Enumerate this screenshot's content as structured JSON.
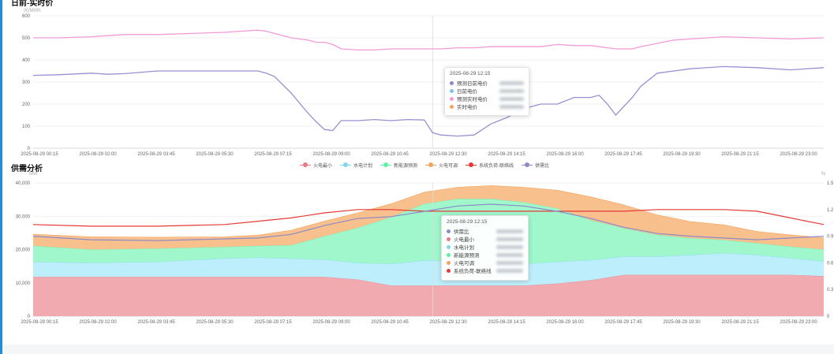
{
  "colors": {
    "accent": "#1e8fd6",
    "s1": "#9a8fd0",
    "s2": "#f29ad8",
    "fire_min": "#e57b86",
    "hydro": "#7fd6ee",
    "renewable": "#5ff0a8",
    "fire_adj": "#f5a35c",
    "load": "#e53935",
    "ratio": "#8e89c9"
  },
  "chart_top": {
    "title": "日前-实时价",
    "unit": "元/MWh",
    "tooltip": {
      "time": "2025-08-29 12:15",
      "rows": [
        {
          "name": "预测日前电价",
          "color": "#8e89c9"
        },
        {
          "name": "日前电价",
          "color": "#7fc0ee"
        },
        {
          "name": "预测实时电价",
          "color": "#f29ad8"
        },
        {
          "name": "实时电价",
          "color": "#f5a35c"
        }
      ]
    }
  },
  "chart_bottom": {
    "title": "供需分析",
    "unit_left": "MW",
    "unit_right": "%",
    "legend": [
      {
        "name": "火电最小",
        "color": "#e57b86"
      },
      {
        "name": "水电计划",
        "color": "#7fd6ee"
      },
      {
        "name": "新能源预测",
        "color": "#5ff0a8"
      },
      {
        "name": "火电可调",
        "color": "#f5a35c"
      },
      {
        "name": "系统负荷-联络线",
        "color": "#e53935"
      },
      {
        "name": "供需比",
        "color": "#8e89c9"
      }
    ],
    "tooltip": {
      "time": "2025-08-29 12:15",
      "rows": [
        {
          "name": "供需比",
          "color": "#8e89c9"
        },
        {
          "name": "火电最小",
          "color": "#e57b86"
        },
        {
          "name": "水电计划",
          "color": "#7fd6ee"
        },
        {
          "name": "新能源预测",
          "color": "#5ff0a8"
        },
        {
          "name": "火电可调",
          "color": "#f5a35c"
        },
        {
          "name": "系统负荷-联络线",
          "color": "#e53935"
        }
      ]
    }
  },
  "chart_data": [
    {
      "type": "line",
      "title": "",
      "ylabel": "元/MWh",
      "ylim": [
        0,
        600
      ],
      "yticks": [
        "0",
        "100",
        "200",
        "300",
        "400",
        "500",
        "600"
      ],
      "xticks": [
        "2025-08-29 00:15",
        "2025-08-29 02:00",
        "2025-08-29 03:45",
        "2025-08-29 05:30",
        "2025-08-29 07:15",
        "2025-08-29 09:00",
        "2025-08-29 10:45",
        "2025-08-29 12:30",
        "2025-08-29 14:15",
        "2025-08-29 16:00",
        "2025-08-29 17:45",
        "2025-08-29 19:30",
        "2025-08-29 21:15",
        "2025-08-29 23:00"
      ],
      "x_hours": [
        0.25,
        1,
        2,
        2.5,
        3,
        4,
        5,
        6,
        7,
        7.25,
        7.5,
        8,
        8.5,
        8.75,
        9,
        9.25,
        9.5,
        10,
        10.5,
        11,
        11.5,
        12,
        12.25,
        12.5,
        13,
        13.5,
        14,
        14.25,
        14.5,
        15,
        15.5,
        16,
        16.5,
        17,
        17.25,
        17.5,
        17.75,
        18,
        18.25,
        18.5,
        19,
        19.5,
        20,
        21,
        22,
        23,
        24
      ],
      "grid": true,
      "series": [
        {
          "values": [
            330,
            333,
            340,
            335,
            338,
            350,
            350,
            350,
            350,
            340,
            325,
            250,
            160,
            120,
            85,
            80,
            125,
            125,
            130,
            125,
            130,
            128,
            70,
            60,
            55,
            60,
            110,
            125,
            140,
            180,
            200,
            200,
            230,
            230,
            240,
            200,
            150,
            190,
            230,
            280,
            340,
            350,
            360,
            370,
            365,
            355,
            365
          ]
        },
        {
          "values": [
            500,
            500,
            505,
            510,
            515,
            515,
            520,
            525,
            535,
            530,
            520,
            500,
            490,
            480,
            480,
            470,
            450,
            445,
            445,
            450,
            450,
            450,
            450,
            450,
            455,
            455,
            460,
            460,
            460,
            460,
            460,
            470,
            465,
            465,
            460,
            455,
            450,
            450,
            450,
            460,
            475,
            490,
            495,
            505,
            500,
            495,
            500
          ]
        }
      ]
    },
    {
      "type": "area",
      "title": "",
      "ylabel": "MW",
      "ylim": [
        0,
        40000
      ],
      "yticks": [
        "0",
        "10,000",
        "20,000",
        "30,000",
        "40,000"
      ],
      "y2ticks": [
        "0",
        "0.3",
        "0.6",
        "0.9",
        "1.2",
        "1.5"
      ],
      "y2lim": [
        0,
        1.5
      ],
      "xticks": [
        "2025-08-29 00:15",
        "2025-08-29 02:00",
        "2025-08-29 03:45",
        "2025-08-29 05:30",
        "2025-08-29 07:15",
        "2025-08-29 09:00",
        "2025-08-29 10:45",
        "2025-08-29 12:30",
        "2025-08-29 14:15",
        "2025-08-29 16:00",
        "2025-08-29 17:45",
        "2025-08-29 19:30",
        "2025-08-29 21:15",
        "2025-08-29 23:00"
      ],
      "x_hours": [
        0.25,
        2,
        4,
        6,
        7,
        8,
        9,
        10,
        11,
        12,
        13,
        14,
        15,
        16,
        17,
        18,
        19,
        20,
        21,
        22,
        23,
        24
      ],
      "stacked": true,
      "grid": true,
      "series": [
        {
          "name": "火电最小",
          "values": [
            11800,
            11800,
            11800,
            11800,
            11800,
            11800,
            11800,
            11000,
            9200,
            9200,
            9200,
            9200,
            9200,
            9800,
            10800,
            12400,
            12400,
            12400,
            12400,
            12400,
            12400,
            12000
          ]
        },
        {
          "name": "水电计划",
          "values": [
            4500,
            4200,
            4500,
            5500,
            5800,
            5500,
            5200,
            5000,
            6500,
            7500,
            7500,
            7000,
            6500,
            6500,
            6000,
            5500,
            5500,
            6000,
            6500,
            6000,
            5000,
            4500
          ]
        },
        {
          "name": "新能源预测",
          "values": [
            4800,
            4000,
            4000,
            3500,
            3500,
            4000,
            7000,
            10500,
            14000,
            17000,
            18500,
            19000,
            18500,
            16000,
            12000,
            8500,
            6500,
            5000,
            4000,
            3500,
            3500,
            3500
          ]
        },
        {
          "name": "火电可调",
          "values": [
            3500,
            3800,
            3400,
            3000,
            3200,
            4500,
            4500,
            4500,
            4000,
            3500,
            3500,
            4000,
            4500,
            5500,
            7000,
            7000,
            6000,
            5000,
            4500,
            3500,
            3500,
            3500
          ]
        },
        {
          "name": "系统负荷-联络线",
          "values": [
            27500,
            27000,
            27000,
            27500,
            28500,
            29500,
            31000,
            32000,
            32000,
            31500,
            31500,
            31500,
            31500,
            31500,
            31500,
            31500,
            32000,
            32000,
            32000,
            31500,
            29500,
            27500
          ]
        },
        {
          "name": "供需比",
          "values": [
            0.9,
            0.86,
            0.85,
            0.87,
            0.88,
            0.92,
            1.02,
            1.1,
            1.12,
            1.18,
            1.24,
            1.26,
            1.24,
            1.18,
            1.1,
            1.0,
            0.93,
            0.9,
            0.88,
            0.86,
            0.88,
            0.9
          ]
        }
      ]
    }
  ]
}
